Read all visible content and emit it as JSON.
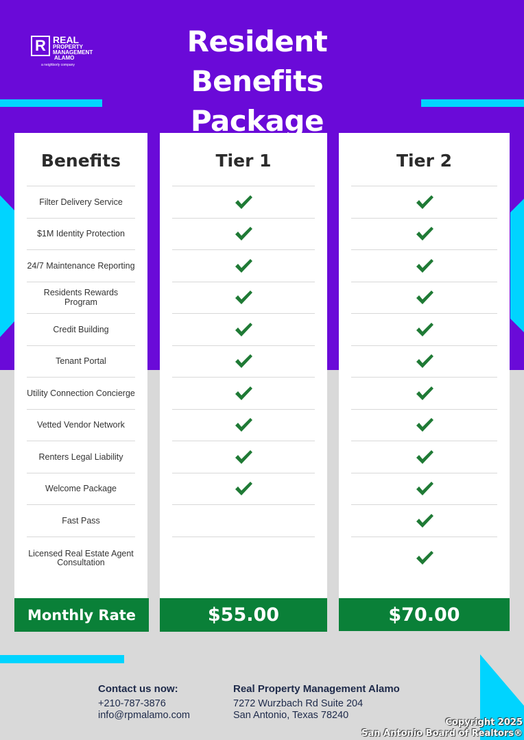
{
  "colors": {
    "purple": "#6a0ad8",
    "cyan": "#00d4ff",
    "green": "#0a8038",
    "gray": "#d9d9d9"
  },
  "logo": {
    "line1": "REAL",
    "line2": "PROPERTY",
    "line3": "MANAGEMENT",
    "line4": "ALAMO",
    "tagline": "a neighborly company",
    "mark": "R"
  },
  "title": "Resident Benefits Package",
  "columns": {
    "benefits": "Benefits",
    "tier1": "Tier 1",
    "tier2": "Tier 2"
  },
  "benefits": [
    {
      "name": "Filter Delivery Service",
      "tier1": true,
      "tier2": true
    },
    {
      "name": "$1M Identity Protection",
      "tier1": true,
      "tier2": true
    },
    {
      "name": "24/7 Maintenance Reporting",
      "tier1": true,
      "tier2": true
    },
    {
      "name": "Residents Rewards Program",
      "tier1": true,
      "tier2": true
    },
    {
      "name": "Credit Building",
      "tier1": true,
      "tier2": true
    },
    {
      "name": "Tenant Portal",
      "tier1": true,
      "tier2": true
    },
    {
      "name": "Utility Connection Concierge",
      "tier1": true,
      "tier2": true
    },
    {
      "name": "Vetted Vendor Network",
      "tier1": true,
      "tier2": true
    },
    {
      "name": "Renters Legal Liability",
      "tier1": true,
      "tier2": true
    },
    {
      "name": "Welcome Package",
      "tier1": true,
      "tier2": true
    },
    {
      "name": "Fast Pass",
      "tier1": false,
      "tier2": true
    },
    {
      "name": "Licensed Real Estate Agent Consultation",
      "tier1": false,
      "tier2": true
    }
  ],
  "rate": {
    "label": "Monthly Rate",
    "tier1": "$55.00",
    "tier2": "$70.00"
  },
  "contact": {
    "heading": "Contact us now:",
    "phone": "+210-787-3876",
    "email": "info@rpmalamo.com"
  },
  "company": {
    "heading": "Real Property Management Alamo",
    "address1": "7272 Wurzbach Rd Suite 204",
    "address2": "San Antonio, Texas 78240"
  },
  "copyright": {
    "line1": "Copyright 2025",
    "line2": "San Antonio Board of Realtors®"
  }
}
